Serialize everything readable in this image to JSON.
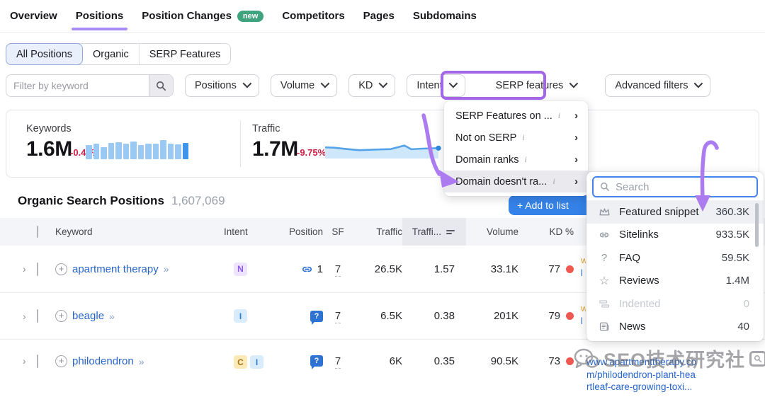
{
  "nav": {
    "tabs": [
      {
        "label": "Overview"
      },
      {
        "label": "Positions",
        "active": true
      },
      {
        "label": "Position Changes",
        "badge": "new"
      },
      {
        "label": "Competitors"
      },
      {
        "label": "Pages"
      },
      {
        "label": "Subdomains"
      }
    ]
  },
  "segmented": {
    "items": [
      {
        "label": "All Positions",
        "selected": true
      },
      {
        "label": "Organic"
      },
      {
        "label": "SERP Features"
      }
    ]
  },
  "filters": {
    "keyword_placeholder": "Filter by keyword",
    "chips": [
      "Positions",
      "Volume",
      "KD",
      "Intent",
      "SERP features",
      "Advanced filters"
    ]
  },
  "summary": {
    "keywords": {
      "label": "Keywords",
      "value": "1.6M",
      "change": "-0.46%",
      "bars": [
        20,
        22,
        17,
        23,
        24,
        22,
        25,
        20,
        22,
        22,
        27,
        22,
        21,
        23
      ]
    },
    "traffic": {
      "label": "Traffic",
      "value": "1.7M",
      "change": "-9.75%",
      "line": [
        [
          0,
          0.42
        ],
        [
          0.08,
          0.44
        ],
        [
          0.18,
          0.52
        ],
        [
          0.3,
          0.6
        ],
        [
          0.45,
          0.56
        ],
        [
          0.58,
          0.53
        ],
        [
          0.7,
          0.3
        ],
        [
          0.76,
          0.54
        ],
        [
          0.86,
          0.5
        ],
        [
          1,
          0.47
        ]
      ]
    }
  },
  "table": {
    "title": "Organic Search Positions",
    "count": "1,607,069",
    "add_button": "+  Add to list",
    "columns": [
      "Keyword",
      "Intent",
      "Position",
      "SF",
      "Traffic",
      "Traffi...",
      "Volume",
      "KD %"
    ],
    "rows": [
      {
        "keyword": "apartment therapy",
        "intents": [
          "N"
        ],
        "position": "1",
        "position_icon": "link",
        "sf": "7",
        "traffic": "26.5K",
        "traffic_pct": "1.57",
        "volume": "33.1K",
        "kd": "77"
      },
      {
        "keyword": "beagle",
        "intents": [
          "I"
        ],
        "position": "",
        "position_icon": "people-also-ask",
        "sf": "7",
        "traffic": "6.5K",
        "traffic_pct": "0.38",
        "volume": "201K",
        "kd": "79"
      },
      {
        "keyword": "philodendron",
        "intents": [
          "C",
          "I"
        ],
        "position": "",
        "position_icon": "people-also-ask",
        "sf": "7",
        "traffic": "6K",
        "traffic_pct": "0.35",
        "volume": "90.5K",
        "kd": "73",
        "url_lines": [
          "www.apartmenttherapy.co",
          "m/philodendron-plant-hea",
          "rtleaf-care-growing-toxi..."
        ]
      }
    ]
  },
  "serp_menu": {
    "items": [
      {
        "label": "SERP Features on ...",
        "info": true
      },
      {
        "label": "Not on SERP",
        "info": true
      },
      {
        "label": "Domain ranks",
        "info": true
      },
      {
        "label": "Domain doesn't ra...",
        "info": true,
        "highlighted": true
      }
    ]
  },
  "serp_submenu": {
    "search_placeholder": "Search",
    "items": [
      {
        "icon": "featured-snippet-crown",
        "label": "Featured snippet",
        "value": "360.3K",
        "highlighted": true
      },
      {
        "icon": "sitelinks-chain",
        "label": "Sitelinks",
        "value": "933.5K"
      },
      {
        "icon": "faq-question",
        "label": "FAQ",
        "value": "59.5K"
      },
      {
        "icon": "reviews-star",
        "label": "Reviews",
        "value": "1.4M"
      },
      {
        "icon": "indented-bars",
        "label": "Indented",
        "value": "0",
        "disabled": true
      },
      {
        "icon": "news-paper",
        "label": "News",
        "value": "40"
      }
    ]
  },
  "watermark": {
    "text": "SEO技术研究社"
  },
  "colors": {
    "annotation_purple": "#a877ef",
    "nav_underline": "#a78bfa",
    "badge_green": "#3fa37d",
    "link_blue": "#2765cc",
    "button_blue": "#3583e8",
    "change_red": "#cc2146",
    "kd_dot_red": "#ee5851",
    "bar_light_blue": "#9ac9f3",
    "bar_dark_blue": "#3f93e8",
    "search_focus_blue": "#4285e8"
  }
}
